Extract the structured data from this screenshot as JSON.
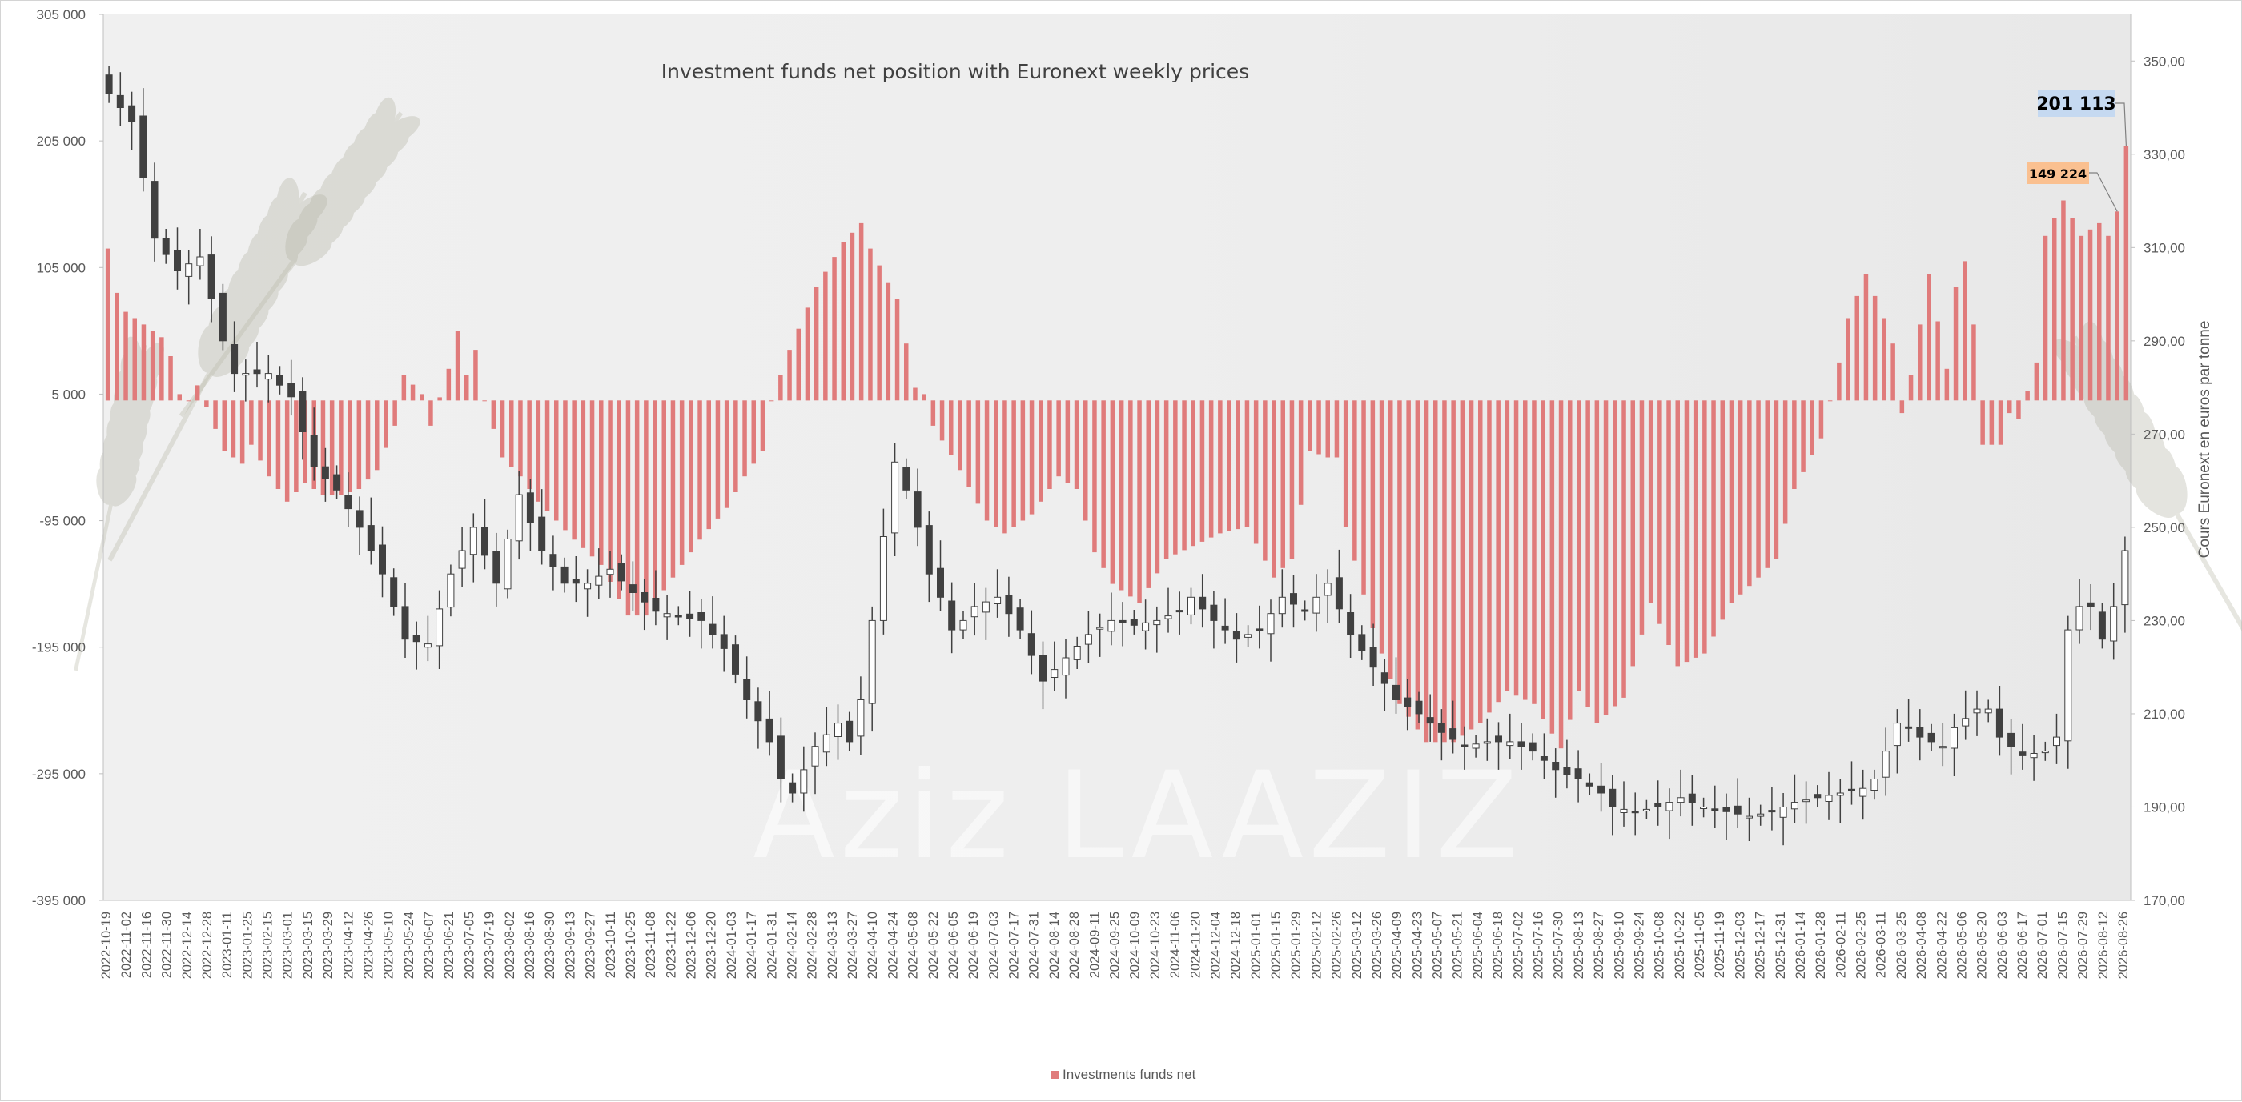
{
  "chart_data": {
    "type": "bar",
    "title": "Investment funds net position with Euronext weekly prices",
    "watermark": "Aziz LAAZIZ",
    "y_axis": {
      "ylim": [
        -395000,
        305000
      ],
      "ticks": [
        "305 000",
        "205 000",
        "105 000",
        "5 000",
        "-95 000",
        "-195 000",
        "-295 000",
        "-395 000"
      ],
      "tick_values": [
        305000,
        205000,
        105000,
        5000,
        -95000,
        -195000,
        -295000,
        -395000
      ]
    },
    "y2_axis": {
      "label": "Cours Euronext en euros par tonne",
      "ylim": [
        170,
        360
      ],
      "ticks": [
        "350,00",
        "330,00",
        "310,00",
        "290,00",
        "270,00",
        "250,00",
        "230,00",
        "210,00",
        "190,00",
        "170,00"
      ],
      "tick_values": [
        350,
        330,
        310,
        290,
        270,
        250,
        230,
        210,
        190,
        170
      ]
    },
    "legend": {
      "label": "Investments funds net",
      "position": "bottom",
      "color": "#e07b7b"
    },
    "colors": {
      "bar": "#e07b7b",
      "candle_down": "#404040",
      "candle_up": "#ffffff",
      "callout1_bg": "#c5d9f1",
      "callout2_bg": "#fac090"
    },
    "annotations": [
      {
        "text": "201 113",
        "value": 201113
      },
      {
        "text": "149 224",
        "value": 149224
      }
    ],
    "x_labels": [
      "2022-10-19",
      "2022-11-02",
      "2022-11-16",
      "2022-11-30",
      "2022-12-14",
      "2022-12-28",
      "2023-01-11",
      "2023-01-25",
      "2023-02-15",
      "2023-03-01",
      "2023-03-15",
      "2023-03-29",
      "2023-04-12",
      "2023-04-26",
      "2023-05-10",
      "2023-05-24",
      "2023-06-07",
      "2023-06-21",
      "2023-07-05",
      "2023-07-19",
      "2023-08-02",
      "2023-08-16",
      "2023-08-30",
      "2023-09-13",
      "2023-09-27",
      "2023-10-11",
      "2023-10-25",
      "2023-11-08",
      "2023-11-22",
      "2023-12-06",
      "2023-12-20",
      "2024-01-03",
      "2024-01-17",
      "2024-01-31",
      "2024-02-14",
      "2024-02-28",
      "2024-03-13",
      "2024-03-27",
      "2024-04-10",
      "2024-04-24",
      "2024-05-08",
      "2024-05-22",
      "2024-06-05",
      "2024-06-19",
      "2024-07-03",
      "2024-07-17",
      "2024-07-31",
      "2024-08-14",
      "2024-08-28",
      "2024-09-11",
      "2024-09-25",
      "2024-10-09",
      "2024-10-23",
      "2024-11-06",
      "2024-11-20",
      "2024-12-04",
      "2024-12-18",
      "2025-01-01",
      "2025-01-15",
      "2025-01-29",
      "2025-02-12",
      "2025-02-26",
      "2025-03-12",
      "2025-03-26",
      "2025-04-09",
      "2025-04-23",
      "2025-05-07",
      "2025-05-21",
      "2025-06-04",
      "2025-06-18",
      "2025-07-02",
      "2025-07-16",
      "2025-07-30",
      "2025-08-13",
      "2025-08-27",
      "2025-09-10",
      "2025-09-24",
      "2025-10-08",
      "2025-10-22",
      "2025-11-05",
      "2025-11-19",
      "2025-12-03",
      "2025-12-17",
      "2025-12-31",
      "2026-01-14",
      "2026-01-28",
      "2026-02-11",
      "2026-02-25",
      "2026-03-11",
      "2026-03-25",
      "2026-04-08",
      "2026-04-22",
      "2026-05-06",
      "2026-05-20",
      "2026-06-03",
      "2026-06-17",
      "2026-07-01",
      "2026-07-15",
      "2026-07-29",
      "2026-08-12",
      "2026-08-26"
    ],
    "bars_anchors": [
      [
        0,
        120000
      ],
      [
        1,
        85000
      ],
      [
        2,
        70000
      ],
      [
        4,
        60000
      ],
      [
        6,
        50000
      ],
      [
        7,
        35000
      ],
      [
        8,
        5000
      ],
      [
        9,
        0
      ],
      [
        10,
        12000
      ],
      [
        11,
        -5000
      ],
      [
        13,
        -40000
      ],
      [
        15,
        -50000
      ],
      [
        16,
        -35000
      ],
      [
        18,
        -60000
      ],
      [
        20,
        -80000
      ],
      [
        22,
        -65000
      ],
      [
        24,
        -75000
      ],
      [
        26,
        -75000
      ],
      [
        28,
        -70000
      ],
      [
        30,
        -55000
      ],
      [
        32,
        -20000
      ],
      [
        33,
        20000
      ],
      [
        35,
        5000
      ],
      [
        36,
        -20000
      ],
      [
        38,
        25000
      ],
      [
        39,
        55000
      ],
      [
        40,
        20000
      ],
      [
        41,
        40000
      ],
      [
        42,
        0
      ],
      [
        44,
        -45000
      ],
      [
        46,
        -60000
      ],
      [
        48,
        -80000
      ],
      [
        50,
        -95000
      ],
      [
        52,
        -110000
      ],
      [
        55,
        -130000
      ],
      [
        58,
        -170000
      ],
      [
        60,
        -170000
      ],
      [
        63,
        -140000
      ],
      [
        66,
        -110000
      ],
      [
        69,
        -85000
      ],
      [
        71,
        -60000
      ],
      [
        73,
        -40000
      ],
      [
        74,
        0
      ],
      [
        76,
        40000
      ],
      [
        79,
        90000
      ],
      [
        82,
        125000
      ],
      [
        84,
        140000
      ],
      [
        85,
        120000
      ],
      [
        88,
        80000
      ],
      [
        90,
        10000
      ],
      [
        91,
        5000
      ],
      [
        92,
        -20000
      ],
      [
        95,
        -55000
      ],
      [
        98,
        -95000
      ],
      [
        100,
        -105000
      ],
      [
        103,
        -90000
      ],
      [
        106,
        -60000
      ],
      [
        108,
        -70000
      ],
      [
        110,
        -120000
      ],
      [
        112,
        -145000
      ],
      [
        115,
        -160000
      ],
      [
        118,
        -125000
      ],
      [
        121,
        -115000
      ],
      [
        124,
        -105000
      ],
      [
        127,
        -100000
      ],
      [
        130,
        -140000
      ],
      [
        132,
        -125000
      ],
      [
        134,
        -40000
      ],
      [
        136,
        -45000
      ],
      [
        137,
        -45000
      ],
      [
        138,
        -100000
      ],
      [
        141,
        -180000
      ],
      [
        144,
        -240000
      ],
      [
        147,
        -270000
      ],
      [
        150,
        -270000
      ],
      [
        153,
        -255000
      ],
      [
        156,
        -230000
      ],
      [
        159,
        -240000
      ],
      [
        162,
        -275000
      ],
      [
        164,
        -230000
      ],
      [
        166,
        -255000
      ],
      [
        169,
        -235000
      ],
      [
        172,
        -160000
      ],
      [
        175,
        -210000
      ],
      [
        178,
        -200000
      ],
      [
        181,
        -160000
      ],
      [
        184,
        -140000
      ],
      [
        186,
        -125000
      ],
      [
        188,
        -70000
      ],
      [
        191,
        -30000
      ],
      [
        193,
        30000
      ],
      [
        194,
        65000
      ],
      [
        196,
        100000
      ],
      [
        198,
        65000
      ],
      [
        199,
        45000
      ],
      [
        200,
        -10000
      ],
      [
        201,
        20000
      ],
      [
        203,
        100000
      ],
      [
        205,
        25000
      ],
      [
        206,
        90000
      ],
      [
        207,
        110000
      ],
      [
        208,
        60000
      ],
      [
        209,
        -35000
      ],
      [
        211,
        -35000
      ],
      [
        212,
        -10000
      ],
      [
        213,
        -15000
      ],
      [
        215,
        30000
      ],
      [
        216,
        130000
      ],
      [
        218,
        158000
      ],
      [
        220,
        130000
      ],
      [
        222,
        140000
      ],
      [
        223,
        130000
      ],
      [
        224,
        149224
      ],
      [
        225,
        201113
      ]
    ],
    "price_anchors": [
      [
        0,
        343
      ],
      [
        1,
        340
      ],
      [
        2,
        337
      ],
      [
        3,
        325
      ],
      [
        4,
        312
      ],
      [
        6,
        305
      ],
      [
        8,
        308
      ],
      [
        10,
        290
      ],
      [
        11,
        283
      ],
      [
        14,
        283
      ],
      [
        16,
        278
      ],
      [
        18,
        263
      ],
      [
        20,
        258
      ],
      [
        22,
        250
      ],
      [
        24,
        240
      ],
      [
        26,
        226
      ],
      [
        28,
        225
      ],
      [
        30,
        240
      ],
      [
        32,
        250
      ],
      [
        34,
        238
      ],
      [
        36,
        257
      ],
      [
        38,
        245
      ],
      [
        40,
        238
      ],
      [
        42,
        238
      ],
      [
        44,
        241
      ],
      [
        46,
        236
      ],
      [
        48,
        232
      ],
      [
        50,
        231
      ],
      [
        52,
        230
      ],
      [
        54,
        224
      ],
      [
        56,
        213
      ],
      [
        58,
        204
      ],
      [
        59,
        196
      ],
      [
        60,
        193
      ],
      [
        62,
        203
      ],
      [
        64,
        208
      ],
      [
        65,
        204
      ],
      [
        66,
        213
      ],
      [
        67,
        230
      ],
      [
        68,
        248
      ],
      [
        69,
        264
      ],
      [
        70,
        258
      ],
      [
        71,
        250
      ],
      [
        72,
        240
      ],
      [
        73,
        235
      ],
      [
        74,
        228
      ],
      [
        75,
        230
      ],
      [
        76,
        233
      ],
      [
        78,
        235
      ],
      [
        80,
        228
      ],
      [
        82,
        217
      ],
      [
        84,
        222
      ],
      [
        86,
        227
      ],
      [
        88,
        230
      ],
      [
        90,
        229
      ],
      [
        92,
        230
      ],
      [
        94,
        232
      ],
      [
        95,
        235
      ],
      [
        97,
        230
      ],
      [
        99,
        226
      ],
      [
        101,
        228
      ],
      [
        103,
        235
      ],
      [
        105,
        232
      ],
      [
        107,
        238
      ],
      [
        109,
        227
      ],
      [
        111,
        220
      ],
      [
        113,
        213
      ],
      [
        115,
        210
      ],
      [
        117,
        206
      ],
      [
        119,
        203
      ],
      [
        121,
        204
      ],
      [
        123,
        204
      ],
      [
        125,
        202
      ],
      [
        127,
        198
      ],
      [
        129,
        196
      ],
      [
        131,
        193
      ],
      [
        132,
        190
      ],
      [
        134,
        189
      ],
      [
        136,
        190
      ],
      [
        138,
        192
      ],
      [
        140,
        190
      ],
      [
        142,
        189
      ],
      [
        144,
        188
      ],
      [
        146,
        189
      ],
      [
        148,
        191
      ],
      [
        150,
        192
      ],
      [
        152,
        193
      ],
      [
        154,
        194
      ],
      [
        155,
        196
      ],
      [
        156,
        202
      ],
      [
        157,
        208
      ],
      [
        158,
        207
      ],
      [
        159,
        205
      ],
      [
        161,
        203
      ],
      [
        162,
        207
      ],
      [
        164,
        211
      ],
      [
        165,
        211
      ],
      [
        166,
        205
      ],
      [
        168,
        201
      ],
      [
        170,
        202
      ],
      [
        171,
        205
      ],
      [
        172,
        228
      ],
      [
        173,
        233
      ],
      [
        174,
        233
      ],
      [
        175,
        226
      ],
      [
        176,
        233
      ],
      [
        177,
        245
      ]
    ]
  }
}
